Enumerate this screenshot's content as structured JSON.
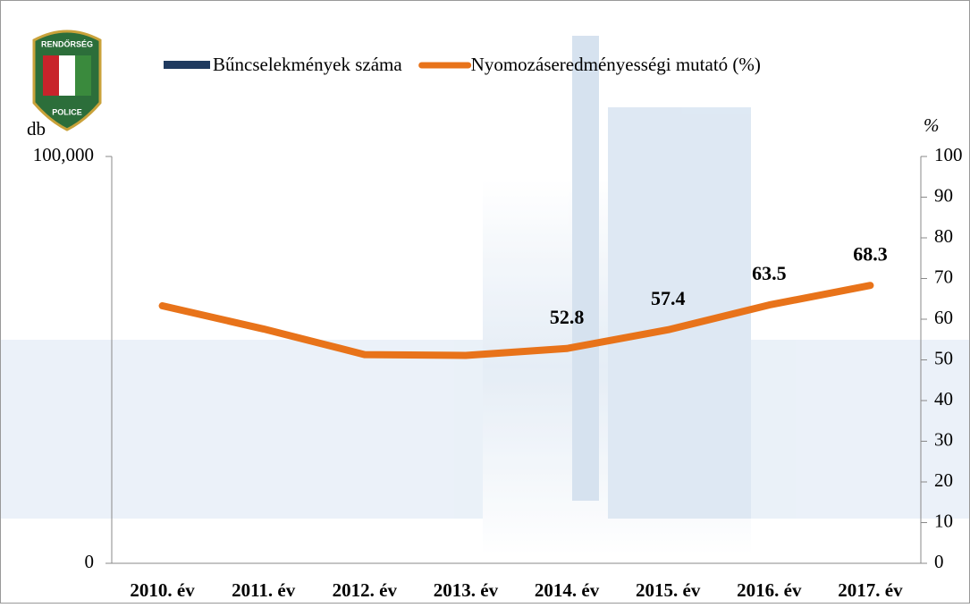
{
  "logo": {
    "top": "RENDŐRSÉG",
    "bottom": "POLICE"
  },
  "chart_data": {
    "type": "line",
    "y_label": "db",
    "y2_label": "%",
    "categories": [
      "2010. év",
      "2011. év",
      "2012. év",
      "2013. év",
      "2014. év",
      "2015. év",
      "2016. év",
      "2017. év"
    ],
    "series": [
      {
        "name": "Bűncselekmények száma",
        "type": "bar",
        "color": "#1f3a5f",
        "axis": "y",
        "values": [
          null,
          null,
          null,
          null,
          null,
          null,
          null,
          null
        ]
      },
      {
        "name": "Nyomozáseredményességi mutató (%)",
        "type": "line",
        "color": "#e8731a",
        "axis": "y2",
        "values": [
          63.3,
          57.6,
          51.3,
          51.1,
          52.8,
          57.4,
          63.5,
          68.3
        ],
        "label_colors": [
          null,
          null,
          "#ffffff",
          "#ffffff",
          "#000000",
          "#000000",
          "#000000",
          "#000000"
        ]
      }
    ],
    "ylim": [
      0,
      100000
    ],
    "yticks": [
      0,
      {
        "value": 100000,
        "label": "100,000"
      }
    ],
    "y2lim": [
      0,
      100
    ],
    "y2ticks": [
      0,
      10,
      20,
      30,
      40,
      50,
      60,
      70,
      80,
      90,
      100
    ],
    "legend": "top"
  }
}
